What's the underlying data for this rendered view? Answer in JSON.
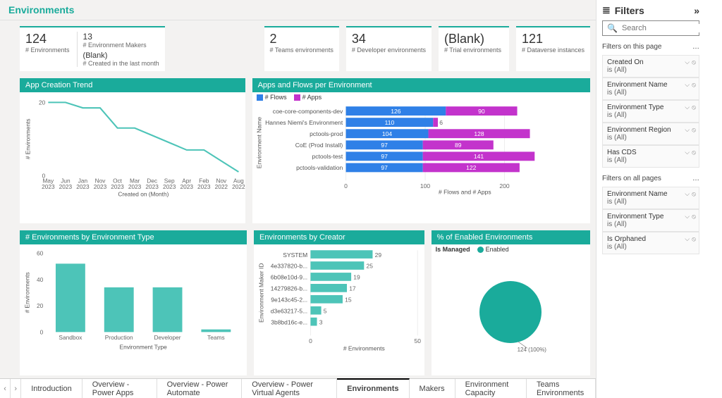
{
  "colors": {
    "teal": "#1aab9b",
    "tealLine": "#4dc4b8",
    "magenta": "#c333cc",
    "blue": "#2f80e7",
    "gray": "#666666",
    "pageTitle": "#1aab9b"
  },
  "pageTitle": "Environments",
  "kpi": {
    "environments": {
      "value": "124",
      "label": "# Environments"
    },
    "makers": {
      "value": "13",
      "label": "# Environment Makers"
    },
    "blank": {
      "value": "(Blank)",
      "label": "# Created in the last month"
    },
    "teams": {
      "value": "2",
      "label": "# Teams environments"
    },
    "developer": {
      "value": "34",
      "label": "# Developer environments"
    },
    "trial": {
      "value": "(Blank)",
      "label": "# Trial environments"
    },
    "dataverse": {
      "value": "121",
      "label": "# Dataverse instances"
    }
  },
  "trend": {
    "title": "App Creation Trend",
    "xlabel": "Created on (Month)",
    "ylabel": "# Environments",
    "ylim": [
      0,
      20
    ],
    "yticks": [
      0,
      20
    ],
    "categories": [
      "May 2023",
      "Jun 2023",
      "Jan 2023",
      "Nov 2023",
      "Oct 2023",
      "Mar 2023",
      "Dec 2023",
      "Sep 2023",
      "Apr 2023",
      "Feb 2023",
      "Nov 2022",
      "Aug 2022"
    ],
    "values": [
      20,
      20,
      18.5,
      18.5,
      13,
      13,
      11,
      9,
      7,
      7,
      4,
      1
    ]
  },
  "stacked": {
    "title": "Apps and Flows per Environment",
    "xlabel": "# Flows and # Apps",
    "ylabel": "Environment Name",
    "legend": {
      "s1": "# Flows",
      "s2": "# Apps"
    },
    "xticks": [
      0,
      100,
      200
    ],
    "xmax": 300,
    "rows": [
      {
        "name": "coe-core-components-dev",
        "flows": 126,
        "apps": 90
      },
      {
        "name": "Hannes Niemi's Environment",
        "flows": 110,
        "apps": 6,
        "appsColor": "#c333cc"
      },
      {
        "name": "pctools-prod",
        "flows": 104,
        "apps": 128
      },
      {
        "name": "CoE (Prod Install)",
        "flows": 97,
        "apps": 89
      },
      {
        "name": "pctools-test",
        "flows": 97,
        "apps": 141
      },
      {
        "name": "pctools-validation",
        "flows": 97,
        "apps": 122
      }
    ]
  },
  "byType": {
    "title": "# Environments by Environment Type",
    "xlabel": "Environment Type",
    "ylabel": "# Environments",
    "yticks": [
      0,
      20,
      40,
      60
    ],
    "ymax": 60,
    "bars": [
      {
        "name": "Sandbox",
        "v": 52
      },
      {
        "name": "Production",
        "v": 34
      },
      {
        "name": "Developer",
        "v": 34
      },
      {
        "name": "Teams",
        "v": 2
      }
    ]
  },
  "byCreator": {
    "title": "Environments by Creator",
    "xlabel": "# Environments",
    "ylabel": "Environment Maker ID",
    "xticks": [
      0,
      50
    ],
    "xmax": 50,
    "rows": [
      {
        "name": "SYSTEM",
        "v": 29
      },
      {
        "name": "4e337820-b...",
        "v": 25
      },
      {
        "name": "6b08e10d-9...",
        "v": 19
      },
      {
        "name": "14279826-b...",
        "v": 17
      },
      {
        "name": "9e143c45-2...",
        "v": 15
      },
      {
        "name": "d3e63217-5...",
        "v": 5
      },
      {
        "name": "3b8bd16c-e...",
        "v": 3
      }
    ]
  },
  "pie": {
    "title": "% of Enabled Environments",
    "legendLabel": "Is Managed",
    "sliceLabel": "Enabled",
    "value": 124,
    "pct": "100%",
    "caption": "124 (100%)"
  },
  "filters": {
    "header": "Filters",
    "searchPlaceholder": "Search",
    "pageSection": "Filters on this page",
    "allSection": "Filters on all pages",
    "condAll": "is (All)",
    "page": [
      {
        "name": "Created On"
      },
      {
        "name": "Environment Name"
      },
      {
        "name": "Environment Type"
      },
      {
        "name": "Environment Region"
      },
      {
        "name": "Has CDS"
      }
    ],
    "all": [
      {
        "name": "Environment Name"
      },
      {
        "name": "Environment Type"
      },
      {
        "name": "Is Orphaned"
      }
    ]
  },
  "tabs": {
    "items": [
      "Introduction",
      "Overview - Power Apps",
      "Overview - Power Automate",
      "Overview - Power Virtual Agents",
      "Environments",
      "Makers",
      "Environment Capacity",
      "Teams Environments"
    ],
    "active": 4
  }
}
